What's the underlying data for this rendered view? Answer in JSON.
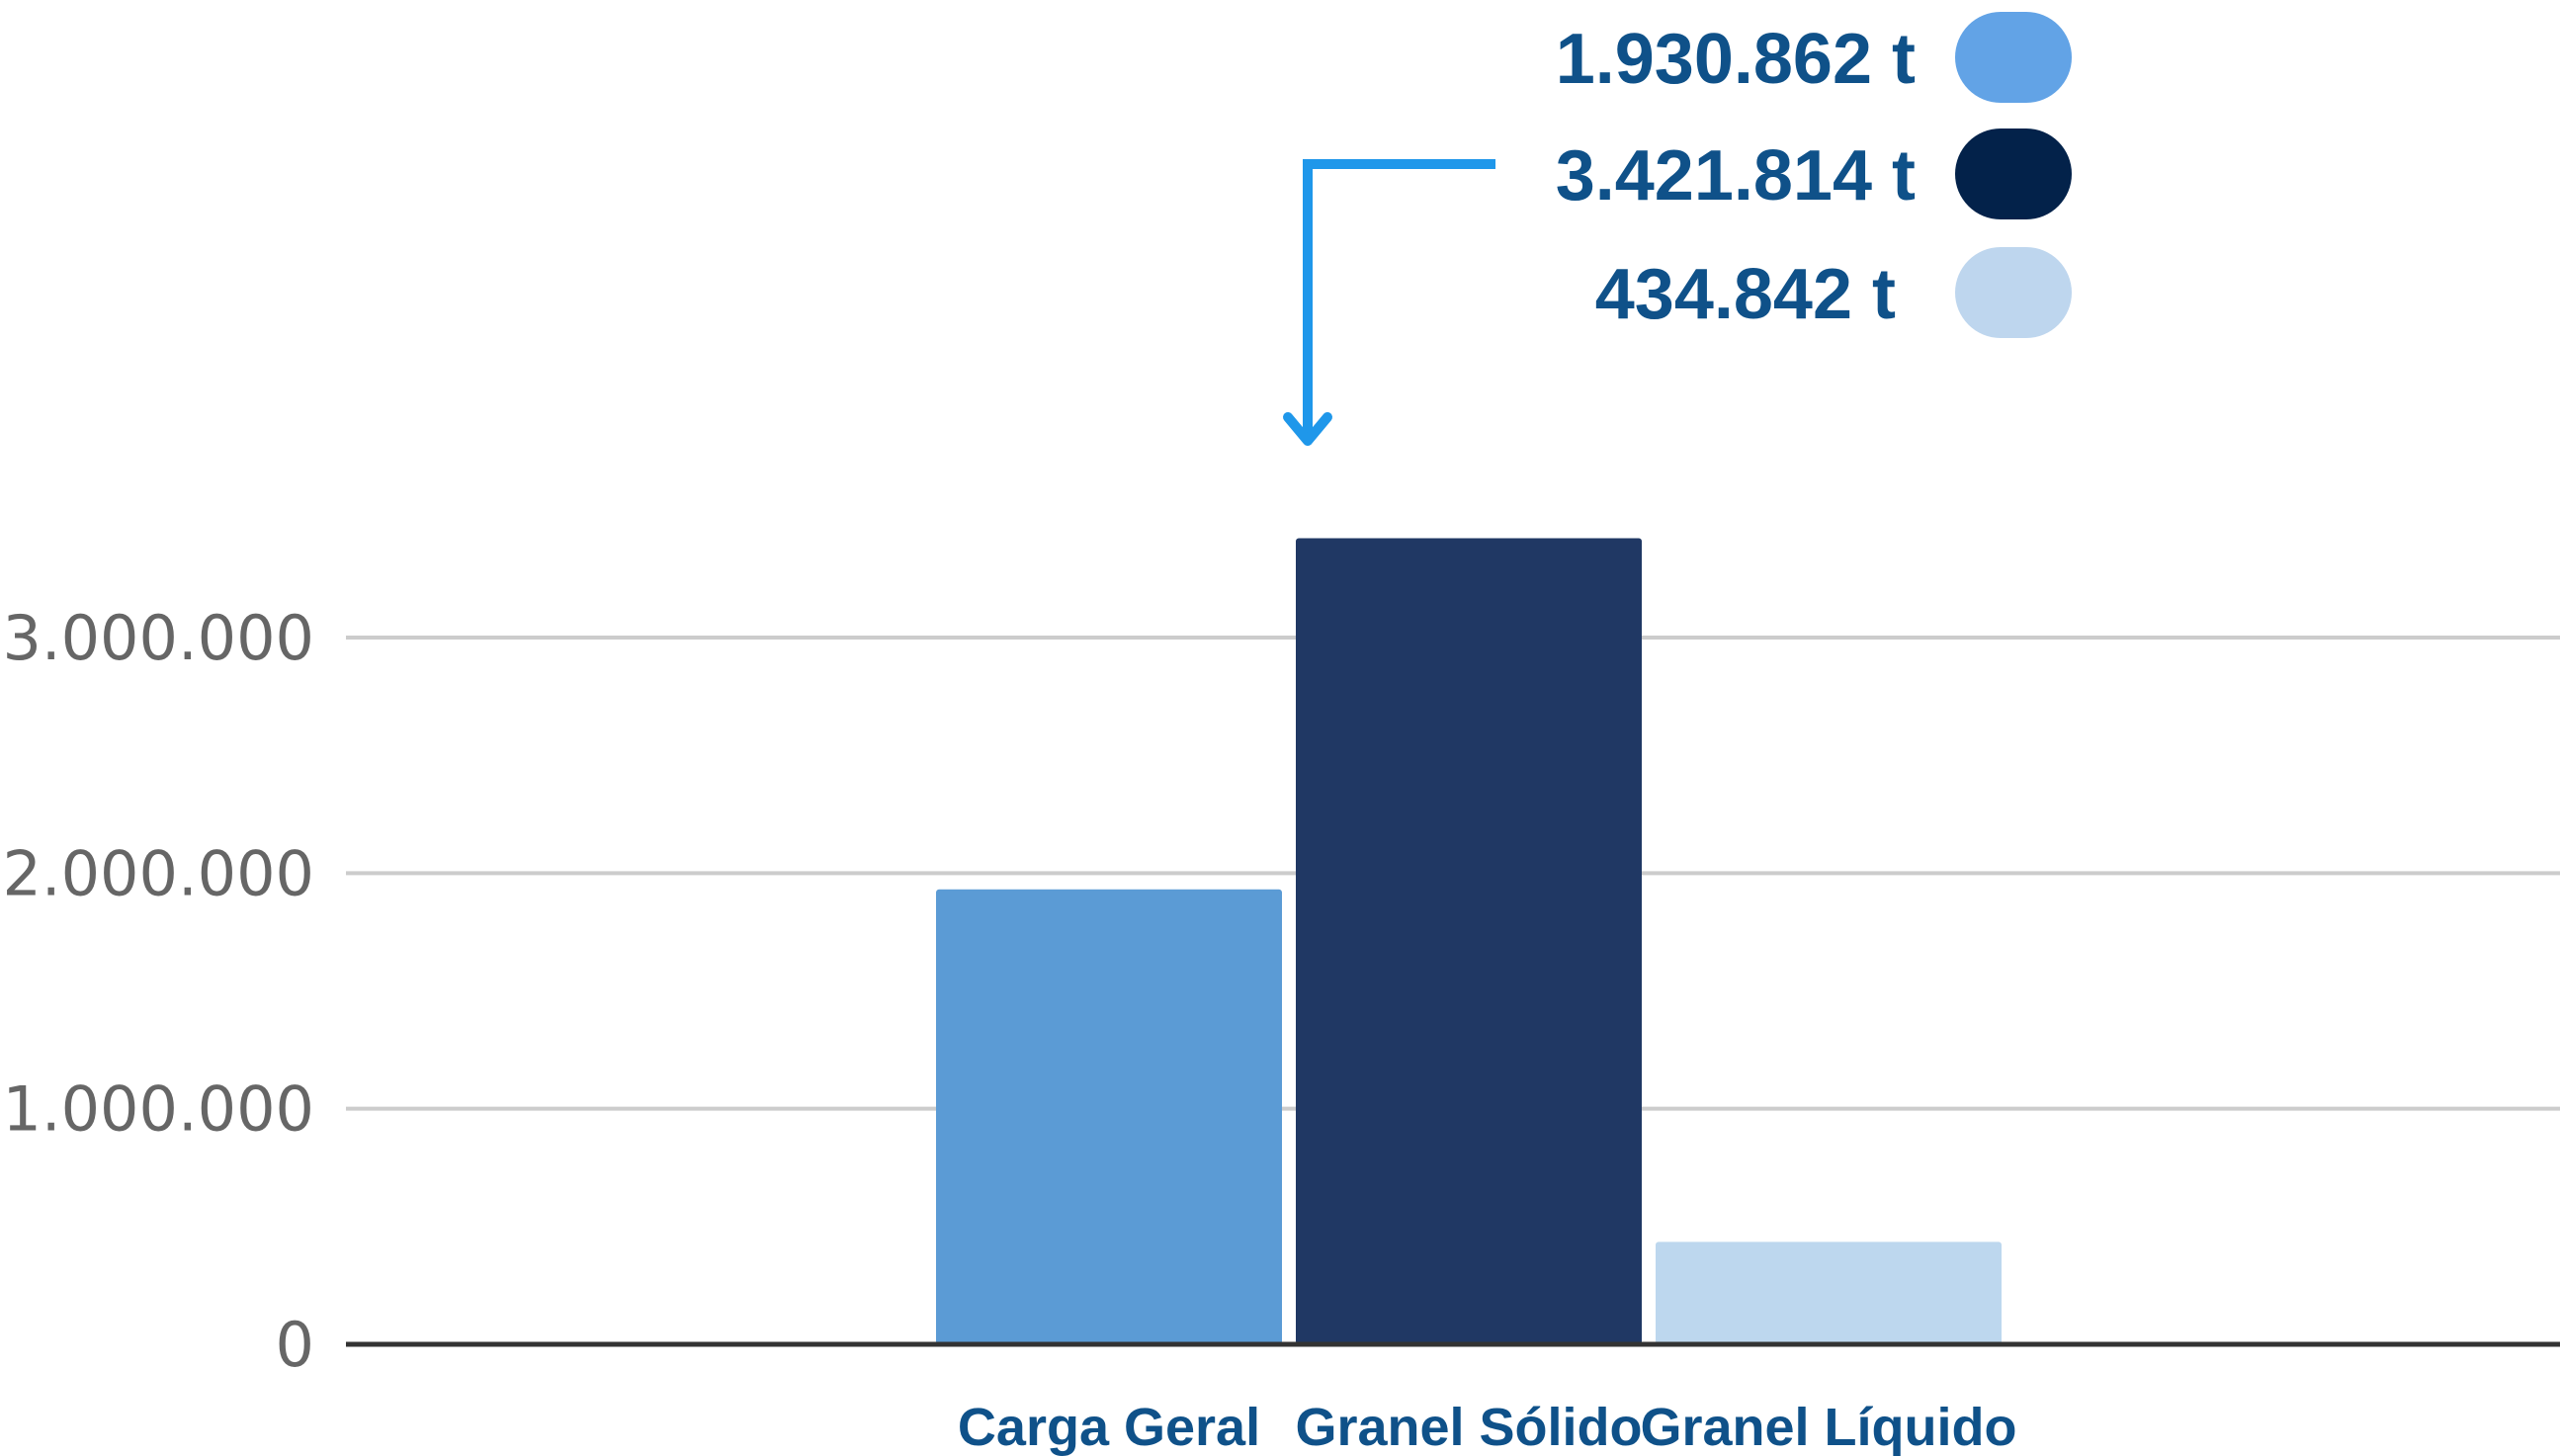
{
  "chart_data": {
    "type": "bar",
    "categories": [
      "Carga Geral",
      "Granel Sólido",
      "Granel Líquido"
    ],
    "values": [
      1930862,
      3421814,
      434842
    ],
    "colors": [
      "#5b9bd5",
      "#203864",
      "#bdd7ee"
    ],
    "ylim": [
      0,
      3500000
    ],
    "yticks": [
      0,
      1000000,
      2000000,
      3000000
    ],
    "ytick_labels": [
      "0",
      "1.000.000",
      "2.000.000",
      "3.000.000"
    ],
    "grid": true,
    "legend_position": "top-right",
    "legend": [
      {
        "label": "1.930.862 t",
        "color": "#62a3e6"
      },
      {
        "label": "3.421.814 t",
        "color": "#03224a"
      },
      {
        "label": "434.842 t",
        "color": "#bed6ee"
      }
    ],
    "annotation": {
      "type": "arrow",
      "color": "#1f97ea",
      "points_to": "Granel Sólido"
    }
  }
}
